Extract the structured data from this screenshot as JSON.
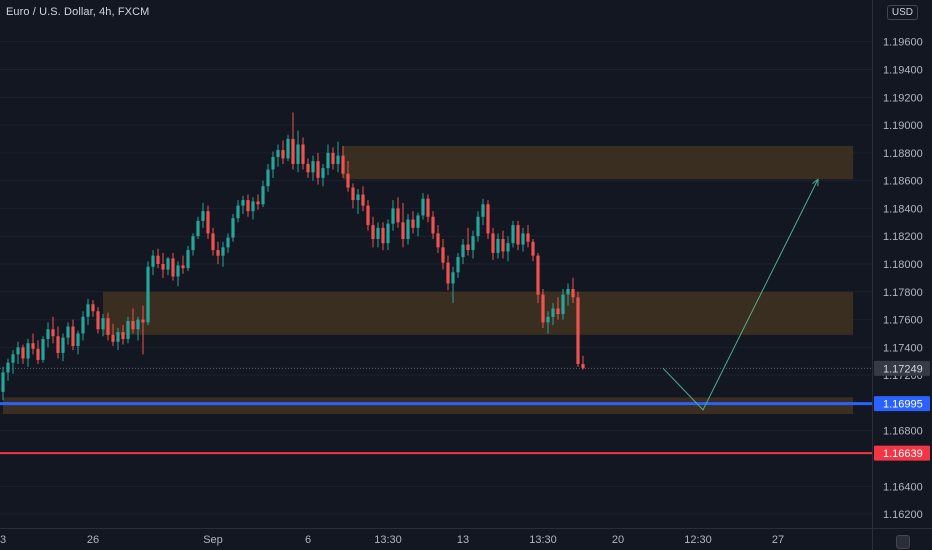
{
  "header": {
    "title": "Euro / U.S. Dollar, 4h, FXCM",
    "currency_button": "USD"
  },
  "colors": {
    "background": "#131722",
    "up": "#26a69a",
    "down": "#ef5350",
    "zone": "#3c2f22",
    "support_line": "#2962ff",
    "resistance_line": "#f23645",
    "arrow": "#4caf8a",
    "text": "#b2b5be"
  },
  "chart_data": {
    "type": "candlestick",
    "symbol": "Euro / U.S. Dollar, 4h, FXCM",
    "ylim": [
      1.161,
      1.199
    ],
    "y_ticks": [
      "1.19600",
      "1.19400",
      "1.19200",
      "1.19000",
      "1.18800",
      "1.18600",
      "1.18400",
      "1.18200",
      "1.18000",
      "1.17800",
      "1.17600",
      "1.17400",
      "1.17200",
      "1.16800",
      "1.16400",
      "1.16200"
    ],
    "x_ticks": [
      {
        "label": "3",
        "index": 0
      },
      {
        "label": "26",
        "index": 18
      },
      {
        "label": "Sep",
        "index": 42
      },
      {
        "label": "6",
        "index": 61
      },
      {
        "label": "13:30",
        "index": 77
      },
      {
        "label": "13",
        "index": 92
      },
      {
        "label": "13:30",
        "index": 108
      },
      {
        "label": "20",
        "index": 123
      },
      {
        "label": "12:30",
        "index": 139
      },
      {
        "label": "27",
        "index": 155
      }
    ],
    "candles": [
      [
        1.1708,
        1.1726,
        1.1702,
        1.1722
      ],
      [
        1.1722,
        1.1732,
        1.1716,
        1.1729
      ],
      [
        1.1729,
        1.1738,
        1.1721,
        1.1735
      ],
      [
        1.1735,
        1.1744,
        1.1728,
        1.174
      ],
      [
        1.174,
        1.1742,
        1.1728,
        1.1732
      ],
      [
        1.1732,
        1.1746,
        1.1726,
        1.1743
      ],
      [
        1.1743,
        1.175,
        1.1735,
        1.1739
      ],
      [
        1.1739,
        1.1745,
        1.1728,
        1.1731
      ],
      [
        1.1731,
        1.1748,
        1.1729,
        1.1746
      ],
      [
        1.1746,
        1.1758,
        1.174,
        1.1753
      ],
      [
        1.1753,
        1.1762,
        1.1743,
        1.1748
      ],
      [
        1.1748,
        1.1755,
        1.1732,
        1.1736
      ],
      [
        1.1736,
        1.175,
        1.173,
        1.1747
      ],
      [
        1.1747,
        1.1758,
        1.1742,
        1.1755
      ],
      [
        1.1755,
        1.176,
        1.1738,
        1.1741
      ],
      [
        1.1741,
        1.1752,
        1.1735,
        1.175
      ],
      [
        1.175,
        1.1766,
        1.1745,
        1.1762
      ],
      [
        1.1762,
        1.1775,
        1.1756,
        1.1771
      ],
      [
        1.1771,
        1.1774,
        1.1762,
        1.1766
      ],
      [
        1.1766,
        1.1769,
        1.175,
        1.1753
      ],
      [
        1.1753,
        1.1764,
        1.1748,
        1.1761
      ],
      [
        1.1761,
        1.1765,
        1.1745,
        1.1749
      ],
      [
        1.1749,
        1.1757,
        1.1741,
        1.1744
      ],
      [
        1.1744,
        1.1754,
        1.1738,
        1.1751
      ],
      [
        1.1751,
        1.1756,
        1.1742,
        1.1746
      ],
      [
        1.1746,
        1.1762,
        1.1743,
        1.1759
      ],
      [
        1.1759,
        1.1768,
        1.175,
        1.1753
      ],
      [
        1.1753,
        1.1762,
        1.1745,
        1.176
      ],
      [
        1.176,
        1.177,
        1.1735,
        1.1758
      ],
      [
        1.1758,
        1.1802,
        1.1756,
        1.1798
      ],
      [
        1.1798,
        1.181,
        1.1792,
        1.1806
      ],
      [
        1.1806,
        1.1811,
        1.1797,
        1.18
      ],
      [
        1.18,
        1.1808,
        1.179,
        1.1796
      ],
      [
        1.1796,
        1.1805,
        1.1792,
        1.1804
      ],
      [
        1.1804,
        1.1808,
        1.1788,
        1.1791
      ],
      [
        1.1791,
        1.1802,
        1.1784,
        1.1799
      ],
      [
        1.1799,
        1.1806,
        1.1793,
        1.1797
      ],
      [
        1.1797,
        1.1813,
        1.1795,
        1.181
      ],
      [
        1.181,
        1.1822,
        1.1806,
        1.182
      ],
      [
        1.182,
        1.1834,
        1.1818,
        1.1831
      ],
      [
        1.1831,
        1.1844,
        1.1826,
        1.1838
      ],
      [
        1.1838,
        1.1842,
        1.1818,
        1.1822
      ],
      [
        1.1822,
        1.1826,
        1.1806,
        1.181
      ],
      [
        1.181,
        1.1816,
        1.18,
        1.1806
      ],
      [
        1.1806,
        1.1816,
        1.1798,
        1.1812
      ],
      [
        1.1812,
        1.1822,
        1.1808,
        1.1819
      ],
      [
        1.1819,
        1.1836,
        1.1816,
        1.1833
      ],
      [
        1.1833,
        1.1846,
        1.183,
        1.1842
      ],
      [
        1.1842,
        1.1849,
        1.1836,
        1.1846
      ],
      [
        1.1846,
        1.185,
        1.1834,
        1.1838
      ],
      [
        1.1838,
        1.1848,
        1.1832,
        1.1845
      ],
      [
        1.1845,
        1.185,
        1.1839,
        1.1843
      ],
      [
        1.1843,
        1.186,
        1.1841,
        1.1856
      ],
      [
        1.1856,
        1.1872,
        1.1852,
        1.1868
      ],
      [
        1.1868,
        1.1881,
        1.1862,
        1.1877
      ],
      [
        1.1877,
        1.1886,
        1.187,
        1.1882
      ],
      [
        1.1882,
        1.1889,
        1.1872,
        1.1876
      ],
      [
        1.1876,
        1.1893,
        1.1874,
        1.189
      ],
      [
        1.189,
        1.1909,
        1.1868,
        1.1872
      ],
      [
        1.1872,
        1.1896,
        1.1866,
        1.1886
      ],
      [
        1.1886,
        1.1891,
        1.1868,
        1.1872
      ],
      [
        1.1872,
        1.1876,
        1.1862,
        1.1866
      ],
      [
        1.1866,
        1.1878,
        1.186,
        1.1874
      ],
      [
        1.1874,
        1.188,
        1.1857,
        1.1862
      ],
      [
        1.1862,
        1.1872,
        1.1856,
        1.1869
      ],
      [
        1.1869,
        1.1886,
        1.1864,
        1.188
      ],
      [
        1.188,
        1.1884,
        1.1868,
        1.1872
      ],
      [
        1.1872,
        1.1888,
        1.1866,
        1.1878
      ],
      [
        1.1878,
        1.1885,
        1.1862,
        1.1865
      ],
      [
        1.1865,
        1.1874,
        1.1852,
        1.1855
      ],
      [
        1.1855,
        1.1858,
        1.184,
        1.1846
      ],
      [
        1.1846,
        1.1854,
        1.1836,
        1.185
      ],
      [
        1.185,
        1.1856,
        1.1838,
        1.1842
      ],
      [
        1.1842,
        1.1846,
        1.1824,
        1.1828
      ],
      [
        1.1828,
        1.1834,
        1.1812,
        1.1818
      ],
      [
        1.1818,
        1.183,
        1.1812,
        1.1826
      ],
      [
        1.1826,
        1.183,
        1.181,
        1.1815
      ],
      [
        1.1815,
        1.1832,
        1.181,
        1.1829
      ],
      [
        1.1829,
        1.1846,
        1.1824,
        1.184
      ],
      [
        1.184,
        1.1848,
        1.1826,
        1.183
      ],
      [
        1.183,
        1.1844,
        1.1812,
        1.1818
      ],
      [
        1.1818,
        1.1836,
        1.1814,
        1.1832
      ],
      [
        1.1832,
        1.1838,
        1.1822,
        1.1826
      ],
      [
        1.1826,
        1.1837,
        1.182,
        1.1835
      ],
      [
        1.1835,
        1.1851,
        1.1832,
        1.1847
      ],
      [
        1.1847,
        1.185,
        1.183,
        1.1834
      ],
      [
        1.1834,
        1.1838,
        1.1818,
        1.1822
      ],
      [
        1.1822,
        1.1828,
        1.1808,
        1.1812
      ],
      [
        1.1812,
        1.1818,
        1.1796,
        1.1801
      ],
      [
        1.1801,
        1.1806,
        1.1781,
        1.1786
      ],
      [
        1.1786,
        1.1798,
        1.1772,
        1.1794
      ],
      [
        1.1794,
        1.1808,
        1.179,
        1.1805
      ],
      [
        1.1805,
        1.1818,
        1.18,
        1.1814
      ],
      [
        1.1814,
        1.1826,
        1.1806,
        1.181
      ],
      [
        1.181,
        1.1824,
        1.1804,
        1.182
      ],
      [
        1.182,
        1.1838,
        1.1816,
        1.1834
      ],
      [
        1.1834,
        1.1847,
        1.1828,
        1.1843
      ],
      [
        1.1843,
        1.1846,
        1.1818,
        1.1822
      ],
      [
        1.1822,
        1.1826,
        1.1803,
        1.1808
      ],
      [
        1.1808,
        1.1822,
        1.1804,
        1.1818
      ],
      [
        1.1818,
        1.1824,
        1.1804,
        1.1809
      ],
      [
        1.1809,
        1.182,
        1.1802,
        1.1815
      ],
      [
        1.1815,
        1.1831,
        1.1812,
        1.1828
      ],
      [
        1.1828,
        1.1831,
        1.181,
        1.1814
      ],
      [
        1.1814,
        1.1826,
        1.1809,
        1.1822
      ],
      [
        1.1822,
        1.1828,
        1.1812,
        1.1816
      ],
      [
        1.1816,
        1.1818,
        1.1802,
        1.1806
      ],
      [
        1.1806,
        1.1808,
        1.1772,
        1.1778
      ],
      [
        1.1778,
        1.1782,
        1.1754,
        1.1758
      ],
      [
        1.1758,
        1.1766,
        1.175,
        1.1762
      ],
      [
        1.1762,
        1.1772,
        1.1756,
        1.1768
      ],
      [
        1.1768,
        1.1776,
        1.176,
        1.1764
      ],
      [
        1.1764,
        1.1782,
        1.176,
        1.1778
      ],
      [
        1.1778,
        1.1786,
        1.177,
        1.1782
      ],
      [
        1.1782,
        1.179,
        1.1772,
        1.1776
      ],
      [
        1.1776,
        1.178,
        1.1726,
        1.1728
      ],
      [
        1.1728,
        1.1734,
        1.1724,
        1.1725
      ]
    ],
    "zones": [
      {
        "from_index": 68,
        "to_index": 170,
        "low": 1.1861,
        "high": 1.1885
      },
      {
        "from_index": 20,
        "to_index": 170,
        "low": 1.1749,
        "high": 1.178
      },
      {
        "from_index": 0,
        "to_index": 170,
        "low": 1.1692,
        "high": 1.1704
      }
    ],
    "horizontal_lines": [
      {
        "price": 1.16995,
        "label": "1.16995",
        "color": "#2962ff"
      },
      {
        "price": 1.16639,
        "label": "1.16639",
        "color": "#f23645"
      }
    ],
    "current_price": {
      "price": 1.17249,
      "label": "1.17249"
    },
    "projection": [
      {
        "index": 132,
        "price": 1.1725
      },
      {
        "index": 140,
        "price": 1.1695
      },
      {
        "index": 163,
        "price": 1.1861
      }
    ]
  }
}
